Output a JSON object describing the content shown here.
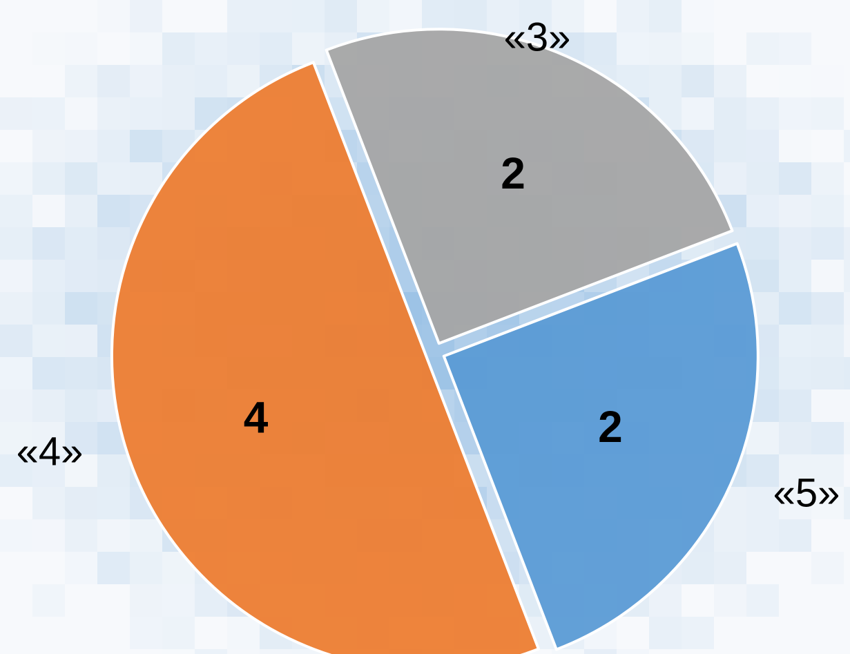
{
  "chart_data": {
    "type": "pie",
    "exploded": true,
    "slices": [
      {
        "category": "«3»",
        "value": 2,
        "value_label": "2",
        "color": "#a5a5a5"
      },
      {
        "category": "«5»",
        "value": 2,
        "value_label": "2",
        "color": "#5b9bd5"
      },
      {
        "category": "«4»",
        "value": 4,
        "value_label": "4",
        "color": "#ed7d31"
      }
    ],
    "slice_border_color": "#ffffff",
    "background_colors": [
      "#f7f9fc",
      "#dbe8f4",
      "#b8d3ec",
      "#9dc3e6"
    ]
  }
}
